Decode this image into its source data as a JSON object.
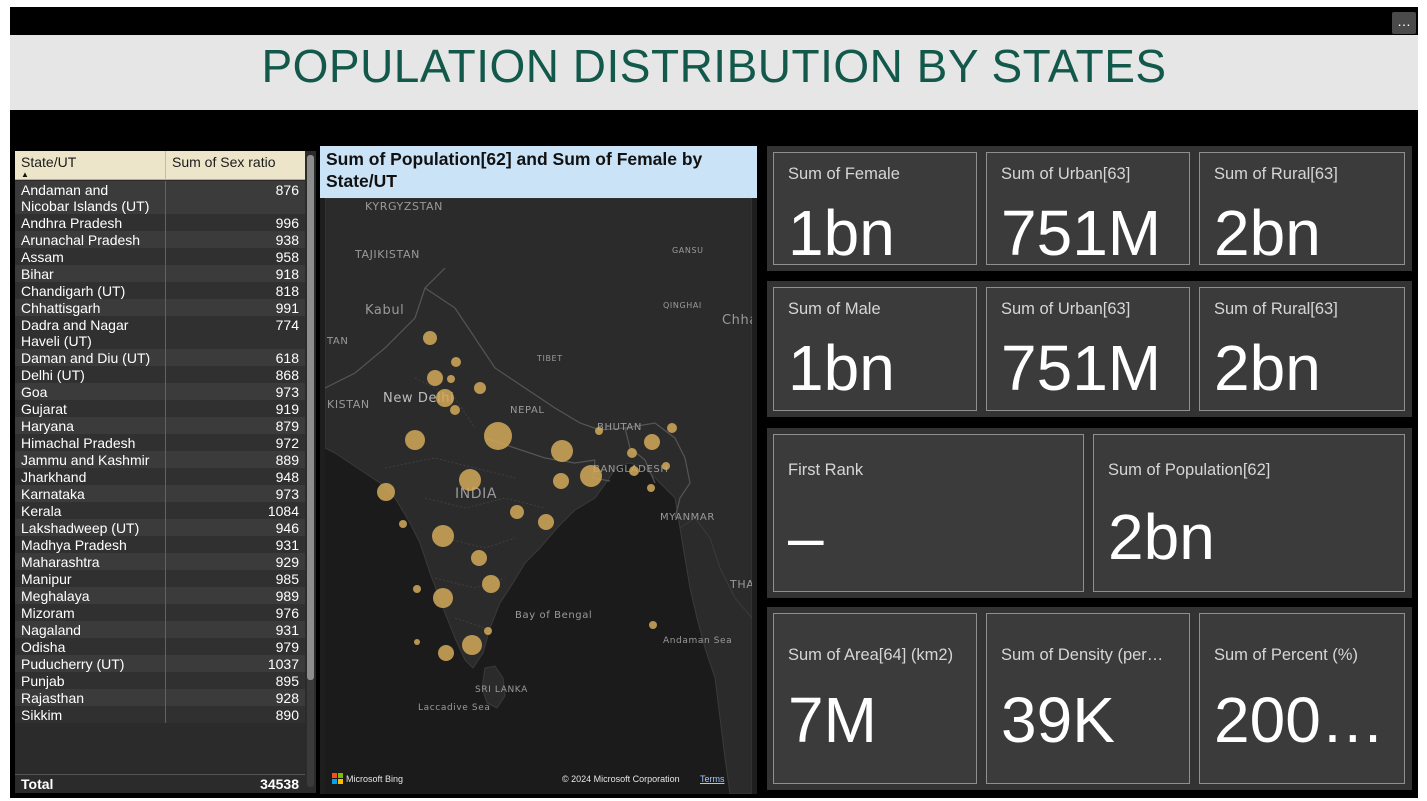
{
  "header": {
    "title": "POPULATION DISTRIBUTION BY STATES",
    "more_label": "…"
  },
  "table": {
    "col_state": "State/UT",
    "col_ratio": "Sum of Sex ratio",
    "rows": [
      {
        "state": "Andaman and Nicobar Islands (UT)",
        "ratio": "876"
      },
      {
        "state": "Andhra Pradesh",
        "ratio": "996"
      },
      {
        "state": "Arunachal Pradesh",
        "ratio": "938"
      },
      {
        "state": "Assam",
        "ratio": "958"
      },
      {
        "state": "Bihar",
        "ratio": "918"
      },
      {
        "state": "Chandigarh (UT)",
        "ratio": "818"
      },
      {
        "state": "Chhattisgarh",
        "ratio": "991"
      },
      {
        "state": "Dadra and Nagar Haveli (UT)",
        "ratio": "774"
      },
      {
        "state": "Daman and Diu (UT)",
        "ratio": "618"
      },
      {
        "state": "Delhi (UT)",
        "ratio": "868"
      },
      {
        "state": "Goa",
        "ratio": "973"
      },
      {
        "state": "Gujarat",
        "ratio": "919"
      },
      {
        "state": "Haryana",
        "ratio": "879"
      },
      {
        "state": "Himachal Pradesh",
        "ratio": "972"
      },
      {
        "state": "Jammu and Kashmir",
        "ratio": "889"
      },
      {
        "state": "Jharkhand",
        "ratio": "948"
      },
      {
        "state": "Karnataka",
        "ratio": "973"
      },
      {
        "state": "Kerala",
        "ratio": "1084"
      },
      {
        "state": "Lakshadweep (UT)",
        "ratio": "946"
      },
      {
        "state": "Madhya Pradesh",
        "ratio": "931"
      },
      {
        "state": "Maharashtra",
        "ratio": "929"
      },
      {
        "state": "Manipur",
        "ratio": "985"
      },
      {
        "state": "Meghalaya",
        "ratio": "989"
      },
      {
        "state": "Mizoram",
        "ratio": "976"
      },
      {
        "state": "Nagaland",
        "ratio": "931"
      },
      {
        "state": "Odisha",
        "ratio": "979"
      },
      {
        "state": "Puducherry (UT)",
        "ratio": "1037"
      },
      {
        "state": "Punjab",
        "ratio": "895"
      },
      {
        "state": "Rajasthan",
        "ratio": "928"
      },
      {
        "state": "Sikkim",
        "ratio": "890"
      }
    ],
    "total_label": "Total",
    "total_value": "34538"
  },
  "map": {
    "title": "Sum of Population[62] and Sum of Female by State/UT",
    "labels": [
      "KYRGYZSTAN",
      "TAJIKISTAN",
      "GANSU",
      "QINGHAI",
      "Kabul",
      "TAN",
      "TIBET",
      "Chhatti",
      "KISTAN",
      "New Delhi",
      "NEPAL",
      "BHUTAN",
      "BANGLADESH",
      "INDIA",
      "MYANMAR",
      "THA",
      "Bay of Bengal",
      "Andaman Sea",
      "SRI LANKA",
      "Laccadive Sea"
    ],
    "bubble_color": "#d2aa5a",
    "bing_label": "Microsoft Bing",
    "copyright": "© 2024 Microsoft Corporation",
    "terms": "Terms"
  },
  "cards": {
    "female": {
      "label": "Sum of Female",
      "value": "1bn"
    },
    "urban1": {
      "label": "Sum of Urban[63]",
      "value": "751M"
    },
    "rural1": {
      "label": "Sum of Rural[63]",
      "value": "2bn"
    },
    "male": {
      "label": "Sum of Male",
      "value": "1bn"
    },
    "urban2": {
      "label": "Sum of Urban[63]",
      "value": "751M"
    },
    "rural2": {
      "label": "Sum of Rural[63]",
      "value": "2bn"
    },
    "first_rank": {
      "label": "First Rank",
      "value": "–"
    },
    "population": {
      "label": "Sum of Population[62]",
      "value": "2bn"
    },
    "area": {
      "label": "Sum of Area[64] (km2)",
      "value": "7M"
    },
    "density": {
      "label": "Sum of Density (per…",
      "value": "39K"
    },
    "percent": {
      "label": "Sum of Percent (%)",
      "value": "200…"
    }
  }
}
